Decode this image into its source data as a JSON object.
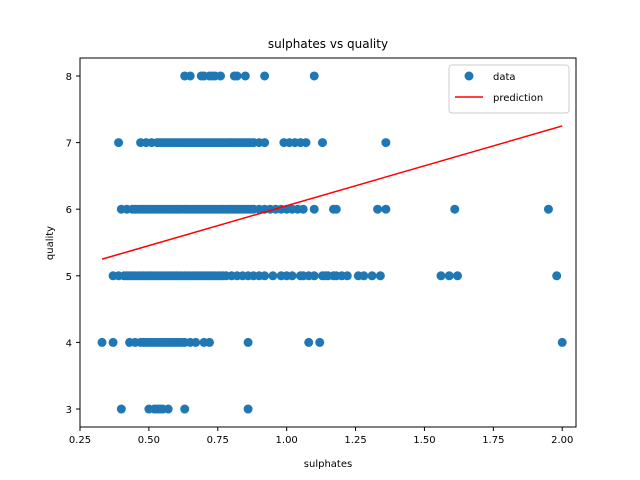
{
  "chart_data": {
    "type": "scatter",
    "title": "sulphates vs quality",
    "xlabel": "sulphates",
    "ylabel": "quality",
    "xlim": [
      0.25,
      2.05
    ],
    "ylim": [
      2.73,
      8.27
    ],
    "xticks": [
      0.25,
      0.5,
      0.75,
      1.0,
      1.25,
      1.5,
      1.75,
      2.0
    ],
    "xtick_labels": [
      "0.25",
      "0.50",
      "0.75",
      "1.00",
      "1.25",
      "1.50",
      "1.75",
      "2.00"
    ],
    "yticks": [
      3,
      4,
      5,
      6,
      7,
      8
    ],
    "ytick_labels": [
      "3",
      "4",
      "5",
      "6",
      "7",
      "8"
    ],
    "grid": false,
    "legend_placement": "upper right",
    "series": [
      {
        "name": "data",
        "kind": "scatter",
        "color": "#1f77b4",
        "points": [
          [
            0.4,
            3
          ],
          [
            0.5,
            3
          ],
          [
            0.52,
            3
          ],
          [
            0.53,
            3
          ],
          [
            0.54,
            3
          ],
          [
            0.55,
            3
          ],
          [
            0.57,
            3
          ],
          [
            0.63,
            3
          ],
          [
            0.86,
            3
          ],
          [
            0.33,
            4
          ],
          [
            0.37,
            4
          ],
          [
            0.43,
            4
          ],
          [
            0.45,
            4
          ],
          [
            0.47,
            4
          ],
          [
            0.48,
            4
          ],
          [
            0.49,
            4
          ],
          [
            0.5,
            4
          ],
          [
            0.51,
            4
          ],
          [
            0.52,
            4
          ],
          [
            0.53,
            4
          ],
          [
            0.54,
            4
          ],
          [
            0.55,
            4
          ],
          [
            0.56,
            4
          ],
          [
            0.57,
            4
          ],
          [
            0.58,
            4
          ],
          [
            0.59,
            4
          ],
          [
            0.6,
            4
          ],
          [
            0.61,
            4
          ],
          [
            0.62,
            4
          ],
          [
            0.63,
            4
          ],
          [
            0.65,
            4
          ],
          [
            0.67,
            4
          ],
          [
            0.7,
            4
          ],
          [
            0.72,
            4
          ],
          [
            0.86,
            4
          ],
          [
            1.08,
            4
          ],
          [
            1.12,
            4
          ],
          [
            2.0,
            4
          ],
          [
            0.37,
            5
          ],
          [
            0.39,
            5
          ],
          [
            0.41,
            5
          ],
          [
            0.42,
            5
          ],
          [
            0.43,
            5
          ],
          [
            0.44,
            5
          ],
          [
            0.45,
            5
          ],
          [
            0.46,
            5
          ],
          [
            0.47,
            5
          ],
          [
            0.48,
            5
          ],
          [
            0.49,
            5
          ],
          [
            0.5,
            5
          ],
          [
            0.51,
            5
          ],
          [
            0.52,
            5
          ],
          [
            0.53,
            5
          ],
          [
            0.54,
            5
          ],
          [
            0.55,
            5
          ],
          [
            0.56,
            5
          ],
          [
            0.57,
            5
          ],
          [
            0.58,
            5
          ],
          [
            0.59,
            5
          ],
          [
            0.6,
            5
          ],
          [
            0.61,
            5
          ],
          [
            0.62,
            5
          ],
          [
            0.63,
            5
          ],
          [
            0.64,
            5
          ],
          [
            0.65,
            5
          ],
          [
            0.66,
            5
          ],
          [
            0.67,
            5
          ],
          [
            0.68,
            5
          ],
          [
            0.69,
            5
          ],
          [
            0.7,
            5
          ],
          [
            0.71,
            5
          ],
          [
            0.72,
            5
          ],
          [
            0.73,
            5
          ],
          [
            0.74,
            5
          ],
          [
            0.75,
            5
          ],
          [
            0.76,
            5
          ],
          [
            0.77,
            5
          ],
          [
            0.78,
            5
          ],
          [
            0.8,
            5
          ],
          [
            0.82,
            5
          ],
          [
            0.84,
            5
          ],
          [
            0.86,
            5
          ],
          [
            0.88,
            5
          ],
          [
            0.9,
            5
          ],
          [
            0.92,
            5
          ],
          [
            0.95,
            5
          ],
          [
            0.98,
            5
          ],
          [
            1.0,
            5
          ],
          [
            1.02,
            5
          ],
          [
            1.05,
            5
          ],
          [
            1.06,
            5
          ],
          [
            1.08,
            5
          ],
          [
            1.1,
            5
          ],
          [
            1.13,
            5
          ],
          [
            1.14,
            5
          ],
          [
            1.15,
            5
          ],
          [
            1.17,
            5
          ],
          [
            1.18,
            5
          ],
          [
            1.2,
            5
          ],
          [
            1.22,
            5
          ],
          [
            1.26,
            5
          ],
          [
            1.28,
            5
          ],
          [
            1.31,
            5
          ],
          [
            1.34,
            5
          ],
          [
            1.56,
            5
          ],
          [
            1.59,
            5
          ],
          [
            1.62,
            5
          ],
          [
            1.98,
            5
          ],
          [
            0.4,
            6
          ],
          [
            0.42,
            6
          ],
          [
            0.44,
            6
          ],
          [
            0.45,
            6
          ],
          [
            0.46,
            6
          ],
          [
            0.47,
            6
          ],
          [
            0.48,
            6
          ],
          [
            0.49,
            6
          ],
          [
            0.5,
            6
          ],
          [
            0.51,
            6
          ],
          [
            0.52,
            6
          ],
          [
            0.53,
            6
          ],
          [
            0.54,
            6
          ],
          [
            0.55,
            6
          ],
          [
            0.56,
            6
          ],
          [
            0.57,
            6
          ],
          [
            0.58,
            6
          ],
          [
            0.59,
            6
          ],
          [
            0.6,
            6
          ],
          [
            0.61,
            6
          ],
          [
            0.62,
            6
          ],
          [
            0.63,
            6
          ],
          [
            0.64,
            6
          ],
          [
            0.65,
            6
          ],
          [
            0.66,
            6
          ],
          [
            0.67,
            6
          ],
          [
            0.68,
            6
          ],
          [
            0.69,
            6
          ],
          [
            0.7,
            6
          ],
          [
            0.71,
            6
          ],
          [
            0.72,
            6
          ],
          [
            0.73,
            6
          ],
          [
            0.74,
            6
          ],
          [
            0.75,
            6
          ],
          [
            0.76,
            6
          ],
          [
            0.77,
            6
          ],
          [
            0.78,
            6
          ],
          [
            0.79,
            6
          ],
          [
            0.8,
            6
          ],
          [
            0.81,
            6
          ],
          [
            0.82,
            6
          ],
          [
            0.83,
            6
          ],
          [
            0.84,
            6
          ],
          [
            0.85,
            6
          ],
          [
            0.86,
            6
          ],
          [
            0.87,
            6
          ],
          [
            0.88,
            6
          ],
          [
            0.9,
            6
          ],
          [
            0.92,
            6
          ],
          [
            0.94,
            6
          ],
          [
            0.96,
            6
          ],
          [
            0.98,
            6
          ],
          [
            1.0,
            6
          ],
          [
            1.02,
            6
          ],
          [
            1.04,
            6
          ],
          [
            1.06,
            6
          ],
          [
            1.1,
            6
          ],
          [
            1.17,
            6
          ],
          [
            1.18,
            6
          ],
          [
            1.33,
            6
          ],
          [
            1.36,
            6
          ],
          [
            1.61,
            6
          ],
          [
            1.95,
            6
          ],
          [
            0.39,
            7
          ],
          [
            0.47,
            7
          ],
          [
            0.49,
            7
          ],
          [
            0.51,
            7
          ],
          [
            0.53,
            7
          ],
          [
            0.54,
            7
          ],
          [
            0.55,
            7
          ],
          [
            0.56,
            7
          ],
          [
            0.57,
            7
          ],
          [
            0.58,
            7
          ],
          [
            0.59,
            7
          ],
          [
            0.6,
            7
          ],
          [
            0.61,
            7
          ],
          [
            0.62,
            7
          ],
          [
            0.63,
            7
          ],
          [
            0.64,
            7
          ],
          [
            0.65,
            7
          ],
          [
            0.66,
            7
          ],
          [
            0.67,
            7
          ],
          [
            0.68,
            7
          ],
          [
            0.69,
            7
          ],
          [
            0.7,
            7
          ],
          [
            0.71,
            7
          ],
          [
            0.72,
            7
          ],
          [
            0.73,
            7
          ],
          [
            0.74,
            7
          ],
          [
            0.75,
            7
          ],
          [
            0.76,
            7
          ],
          [
            0.77,
            7
          ],
          [
            0.78,
            7
          ],
          [
            0.79,
            7
          ],
          [
            0.8,
            7
          ],
          [
            0.81,
            7
          ],
          [
            0.82,
            7
          ],
          [
            0.83,
            7
          ],
          [
            0.84,
            7
          ],
          [
            0.85,
            7
          ],
          [
            0.86,
            7
          ],
          [
            0.87,
            7
          ],
          [
            0.88,
            7
          ],
          [
            0.9,
            7
          ],
          [
            0.92,
            7
          ],
          [
            0.99,
            7
          ],
          [
            1.01,
            7
          ],
          [
            1.03,
            7
          ],
          [
            1.05,
            7
          ],
          [
            1.07,
            7
          ],
          [
            1.13,
            7
          ],
          [
            1.36,
            7
          ],
          [
            0.63,
            8
          ],
          [
            0.65,
            8
          ],
          [
            0.69,
            8
          ],
          [
            0.7,
            8
          ],
          [
            0.72,
            8
          ],
          [
            0.73,
            8
          ],
          [
            0.74,
            8
          ],
          [
            0.76,
            8
          ],
          [
            0.81,
            8
          ],
          [
            0.82,
            8
          ],
          [
            0.85,
            8
          ],
          [
            0.92,
            8
          ],
          [
            1.1,
            8
          ]
        ]
      },
      {
        "name": "prediction",
        "kind": "line",
        "color": "#ff0000",
        "x": [
          0.33,
          2.0
        ],
        "y": [
          5.25,
          7.25
        ]
      }
    ]
  }
}
